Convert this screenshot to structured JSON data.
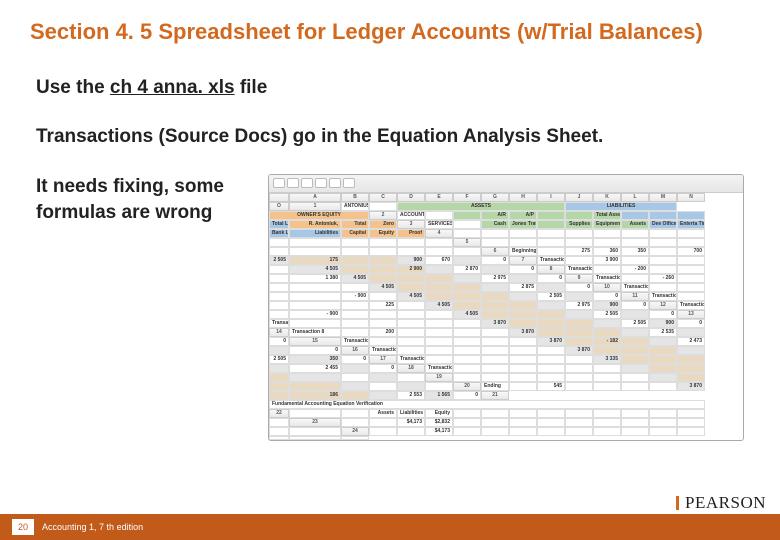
{
  "title": "Section 4. 5 Spreadsheet for Ledger Accounts (w/Trial Balances)",
  "line1_a": "Use the ",
  "line1_u": "ch 4 anna. xls",
  "line1_b": " file",
  "line2": "Transactions (Source Docs) go in the Equation Analysis Sheet.",
  "line3": "It needs fixing, some formulas are wrong",
  "footer": {
    "page": "20",
    "book": "Accounting 1, 7 th edition"
  },
  "brand": "PEARSON",
  "ss": {
    "cols": [
      "",
      "A",
      "B",
      "C",
      "D",
      "E",
      "F",
      "G",
      "H",
      "I",
      "J",
      "K",
      "L",
      "M",
      "N",
      "O"
    ],
    "company": [
      "ANTONIUS'S",
      "ACCOUNTING",
      "SERVICES"
    ],
    "groups": {
      "assets": "ASSETS",
      "liab": "LIABILITIES",
      "oe": "OWNER'S EQUITY"
    },
    "assetsSub": {
      "cash": "Cash",
      "ar1": "A/R",
      "ar1b": "Jones Travel",
      "ar2": "A/P",
      "supp": "Supplies",
      "equip": "Equipment",
      "total": "Total Assets"
    },
    "liabSub": {
      "d": "Dee Olfice",
      "e": "Enterta Times",
      "b": "Bank Loan",
      "total": "Total Liabilities"
    },
    "oeSub": {
      "owner": "R. Antoniuk,",
      "cap": "Capital",
      "te": "Total Equity",
      "zp": "Zero Proof"
    },
    "rowLabels": [
      "Beginning",
      "Transaction 1",
      "Transaction 2",
      "Transaction 3",
      "Transaction 4",
      "Transaction 5",
      "Transaction 6",
      "Transaction 7",
      "Transaction 8",
      "Transaction 9",
      "Transaction 10",
      "Transaction 11",
      "Transaction 12",
      "",
      "Ending"
    ],
    "rowNums": [
      6,
      7,
      8,
      9,
      10,
      11,
      12,
      13,
      14,
      15,
      16,
      17,
      18,
      19,
      20
    ],
    "data": [
      [
        "275",
        "360",
        "350",
        "",
        "700",
        "2 505",
        "175",
        "",
        "",
        "900",
        "670",
        "",
        "1 580",
        "0"
      ],
      [
        "3 900",
        "",
        "",
        "",
        "",
        "4 505",
        "",
        "",
        "2 900",
        "",
        "2 870",
        "",
        "1 860",
        "0"
      ],
      [
        "- 200",
        "",
        "",
        "",
        "1 380",
        "4 505",
        "",
        "",
        "",
        "",
        "2 975",
        "",
        "1 860",
        "0"
      ],
      [
        "- 260",
        "",
        "",
        "",
        "",
        "4 505",
        "",
        "",
        "",
        "",
        "2 875",
        "",
        "1 665",
        "0"
      ],
      [
        "",
        "",
        "",
        "- 900",
        "",
        "4 505",
        "",
        "",
        "",
        "",
        "2 505",
        "",
        "1 665",
        "0"
      ],
      [
        "",
        "",
        "",
        "225",
        "",
        "4 505",
        "",
        "",
        "",
        "",
        "2 975",
        "900",
        "1 665",
        "0"
      ],
      [
        "- 900",
        "",
        "",
        "",
        "",
        "4 505",
        "",
        "",
        "",
        "",
        "2 505",
        "",
        "1 665",
        "0"
      ],
      [
        "",
        "",
        "",
        "",
        "",
        "3 870",
        "",
        "",
        "",
        "",
        "2 505",
        "900",
        "1 345",
        "0"
      ],
      [
        "200",
        "",
        "",
        "",
        "",
        "3 870",
        "",
        "",
        "",
        "",
        "2 535",
        "",
        "1 345",
        "0"
      ],
      [
        "",
        "",
        "",
        "",
        "",
        "3 870",
        "",
        "- 182",
        "",
        "",
        "2 473",
        "",
        "1 345",
        "0"
      ],
      [
        "",
        "",
        "",
        "",
        "",
        "3 870",
        "",
        "",
        "",
        "",
        "2 505",
        "350",
        "1 345",
        "0"
      ],
      [
        "",
        "",
        "",
        "",
        "",
        "3 335",
        "",
        "",
        "",
        "",
        "2 455",
        "",
        "1 345",
        "0"
      ],
      [
        "",
        "",
        "",
        "",
        "",
        "",
        "",
        "",
        "",
        "",
        "",
        "",
        "",
        ""
      ],
      [
        "",
        "",
        "",
        "",
        "",
        "",
        "",
        "",
        "",
        "",
        "",
        "",
        "",
        ""
      ],
      [
        "545",
        "",
        "",
        "",
        "",
        "3 870",
        "",
        "186",
        "",
        "",
        "2 553",
        "1 565",
        "1 345",
        "0"
      ]
    ],
    "fae": {
      "title": "Fundamental Accounting Equation Verification",
      "h": [
        "Assets",
        "Liabilities",
        "Equity"
      ],
      "r1": [
        "$4,173",
        "$2,832",
        ""
      ],
      "r2": [
        "$4,173",
        "",
        ""
      ]
    }
  }
}
